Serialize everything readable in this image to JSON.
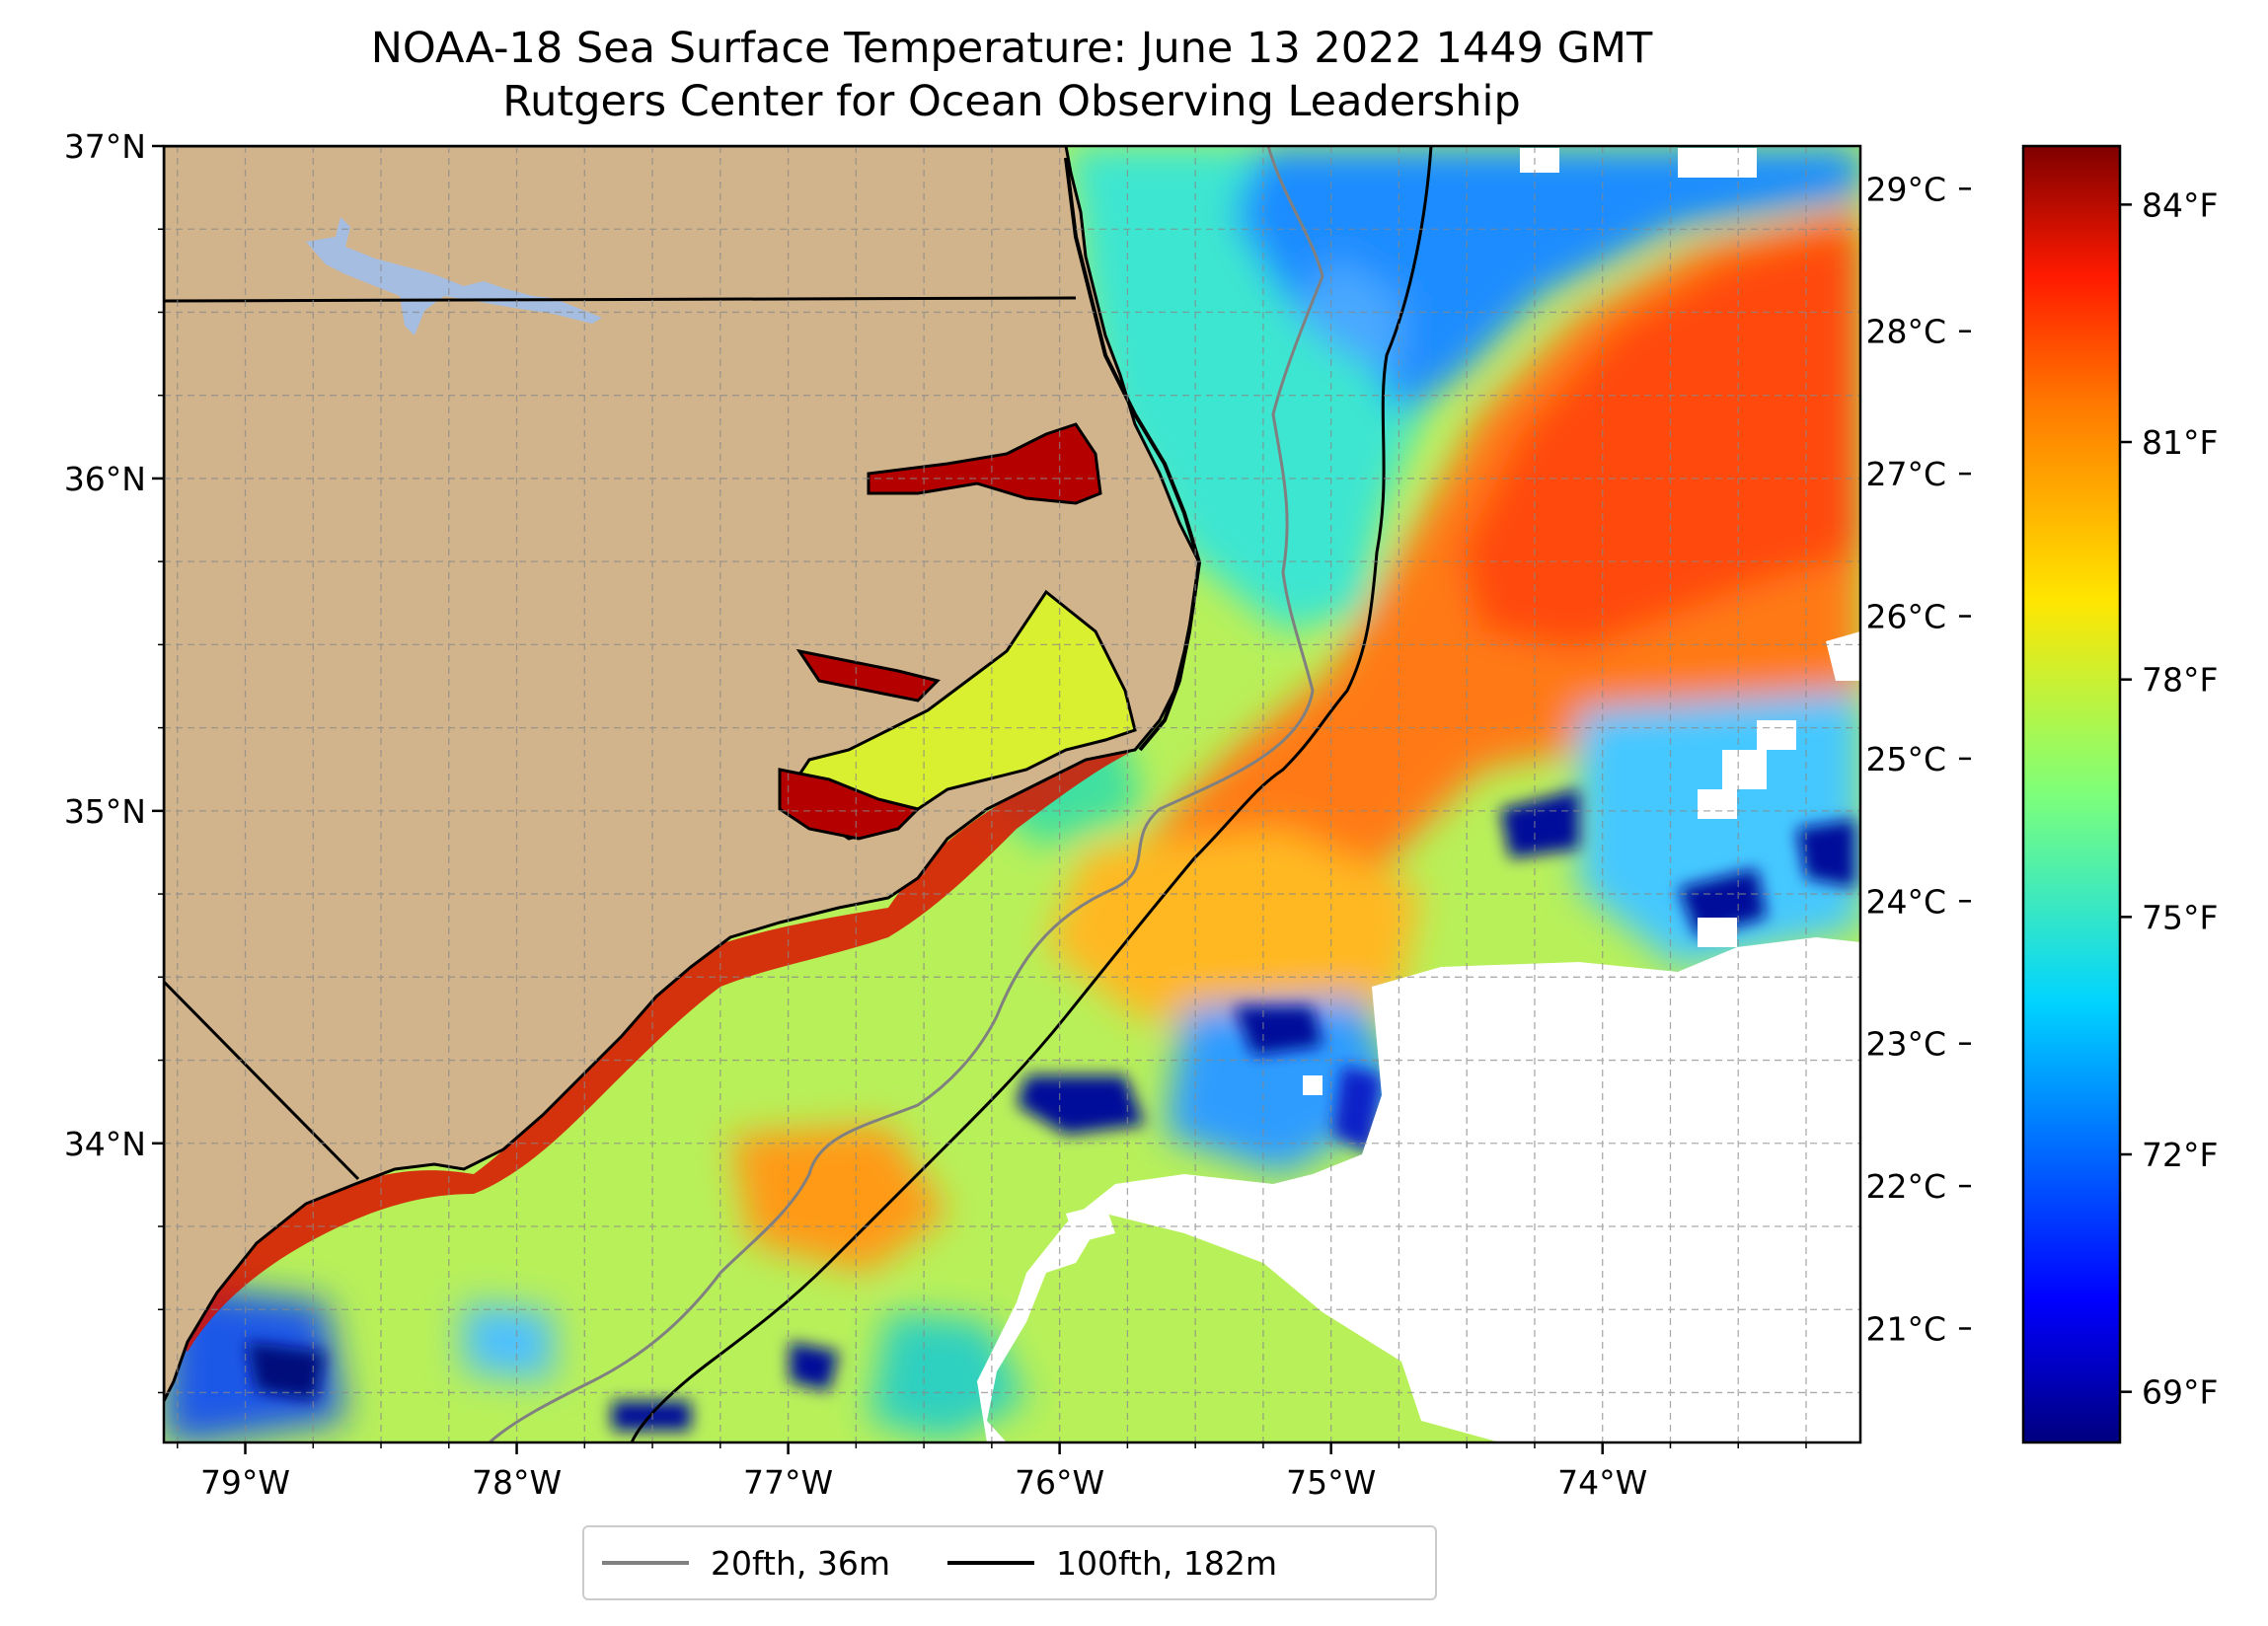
{
  "title": {
    "line1": "NOAA-18 Sea Surface Temperature: June 13 2022 1449 GMT",
    "line2": "Rutgers Center for Ocean Observing Leadership"
  },
  "map": {
    "extent": {
      "lon_min": -79.3,
      "lon_max": -73.05,
      "lat_min": 33.1,
      "lat_max": 37.0
    },
    "lat_ticks": [
      {
        "value": 37,
        "label": "37°N"
      },
      {
        "value": 36,
        "label": "36°N"
      },
      {
        "value": 35,
        "label": "35°N"
      },
      {
        "value": 34,
        "label": "34°N"
      }
    ],
    "lon_ticks": [
      {
        "value": -79,
        "label": "79°W"
      },
      {
        "value": -78,
        "label": "78°W"
      },
      {
        "value": -77,
        "label": "77°W"
      },
      {
        "value": -76,
        "label": "76°W"
      },
      {
        "value": -75,
        "label": "75°W"
      },
      {
        "value": -74,
        "label": "74°W"
      }
    ],
    "gridlines": true,
    "land_color": "#d2b48c",
    "lake_color": "#a4bde0"
  },
  "colorbar": {
    "colormap": "jet",
    "celsius_ticks": [
      {
        "value": 29,
        "label": "29°C"
      },
      {
        "value": 28,
        "label": "28°C"
      },
      {
        "value": 27,
        "label": "27°C"
      },
      {
        "value": 26,
        "label": "26°C"
      },
      {
        "value": 25,
        "label": "25°C"
      },
      {
        "value": 24,
        "label": "24°C"
      },
      {
        "value": 23,
        "label": "23°C"
      },
      {
        "value": 22,
        "label": "22°C"
      },
      {
        "value": 21,
        "label": "21°C"
      }
    ],
    "fahrenheit_ticks": [
      {
        "value": 84,
        "label": "84°F"
      },
      {
        "value": 81,
        "label": "81°F"
      },
      {
        "value": 78,
        "label": "78°F"
      },
      {
        "value": 75,
        "label": "75°F"
      },
      {
        "value": 72,
        "label": "72°F"
      },
      {
        "value": 69,
        "label": "69°F"
      }
    ],
    "range_celsius": [
      20.2,
      29.3
    ]
  },
  "legend": {
    "items": [
      {
        "label": "20fth, 36m",
        "color": "#808080"
      },
      {
        "label": "100fth, 182m",
        "color": "#000000"
      }
    ]
  }
}
